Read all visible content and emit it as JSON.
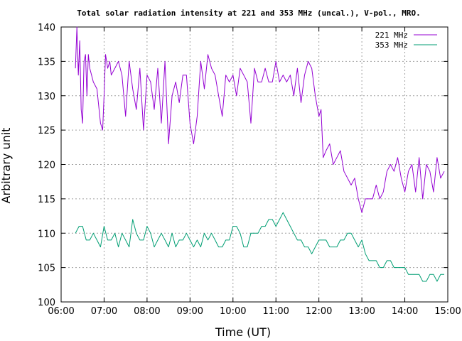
{
  "chart_data": {
    "type": "line",
    "title": "Total solar radiation intensity at 221 and 353 MHz (uncal.), V-pol., MRO.",
    "xlabel": "Time (UT)",
    "ylabel": "Arbitrary unit",
    "xlim": [
      "06:00",
      "15:00"
    ],
    "ylim": [
      100,
      140
    ],
    "x_ticks": [
      "06:00",
      "07:00",
      "08:00",
      "09:00",
      "10:00",
      "11:00",
      "12:00",
      "13:00",
      "14:00",
      "15:00"
    ],
    "y_ticks": [
      100,
      105,
      110,
      115,
      120,
      125,
      130,
      135,
      140
    ],
    "grid": true,
    "legend_position": "top-right",
    "series": [
      {
        "name": "221 MHz",
        "color": "#9400d3",
        "x": [
          "06:20",
          "06:22",
          "06:24",
          "06:26",
          "06:28",
          "06:30",
          "06:32",
          "06:34",
          "06:36",
          "06:38",
          "06:40",
          "06:45",
          "06:50",
          "06:55",
          "06:58",
          "07:00",
          "07:02",
          "07:05",
          "07:08",
          "07:10",
          "07:15",
          "07:20",
          "07:25",
          "07:30",
          "07:35",
          "07:40",
          "07:45",
          "07:50",
          "07:55",
          "08:00",
          "08:05",
          "08:10",
          "08:15",
          "08:20",
          "08:25",
          "08:30",
          "08:35",
          "08:40",
          "08:45",
          "08:50",
          "08:55",
          "09:00",
          "09:05",
          "09:10",
          "09:15",
          "09:20",
          "09:25",
          "09:30",
          "09:35",
          "09:40",
          "09:45",
          "09:50",
          "09:55",
          "10:00",
          "10:05",
          "10:10",
          "10:15",
          "10:20",
          "10:25",
          "10:30",
          "10:35",
          "10:40",
          "10:45",
          "10:50",
          "10:55",
          "11:00",
          "11:05",
          "11:10",
          "11:15",
          "11:20",
          "11:25",
          "11:30",
          "11:35",
          "11:40",
          "11:45",
          "11:50",
          "11:55",
          "12:00",
          "12:03",
          "12:06",
          "12:10",
          "12:15",
          "12:20",
          "12:25",
          "12:30",
          "12:35",
          "12:40",
          "12:45",
          "12:50",
          "12:55",
          "13:00",
          "13:05",
          "13:10",
          "13:15",
          "13:20",
          "13:25",
          "13:30",
          "13:35",
          "13:40",
          "13:45",
          "13:50",
          "13:55",
          "14:00",
          "14:05",
          "14:10",
          "14:15",
          "14:20",
          "14:25",
          "14:30",
          "14:35",
          "14:40",
          "14:45",
          "14:50",
          "14:55"
        ],
        "values": [
          134,
          140,
          133,
          138,
          128,
          126,
          135,
          136,
          130,
          136,
          134,
          132,
          131,
          126,
          125,
          130,
          136,
          134,
          135,
          133,
          134,
          135,
          133,
          127,
          135,
          131,
          128,
          134,
          125,
          133,
          132,
          128,
          134,
          126,
          135,
          123,
          130,
          132,
          129,
          133,
          133,
          126,
          123,
          127,
          135,
          131,
          136,
          134,
          133,
          130,
          127,
          133,
          132,
          133,
          130,
          134,
          133,
          132,
          126,
          134,
          132,
          132,
          134,
          132,
          132,
          135,
          132,
          133,
          132,
          133,
          130,
          134,
          129,
          133,
          135,
          134,
          130,
          127,
          128,
          121,
          122,
          123,
          120,
          121,
          122,
          119,
          118,
          117,
          118,
          115,
          113,
          115,
          115,
          115,
          117,
          115,
          116,
          119,
          120,
          119,
          121,
          118,
          116,
          119,
          120,
          116,
          121,
          115,
          120,
          119,
          116,
          121,
          118,
          119
        ]
      },
      {
        "name": "353 MHz",
        "color": "#009e73",
        "x": [
          "06:20",
          "06:25",
          "06:30",
          "06:35",
          "06:40",
          "06:45",
          "06:50",
          "06:55",
          "07:00",
          "07:05",
          "07:10",
          "07:15",
          "07:20",
          "07:25",
          "07:30",
          "07:35",
          "07:40",
          "07:45",
          "07:50",
          "07:55",
          "08:00",
          "08:05",
          "08:10",
          "08:15",
          "08:20",
          "08:25",
          "08:30",
          "08:35",
          "08:40",
          "08:45",
          "08:50",
          "08:55",
          "09:00",
          "09:05",
          "09:10",
          "09:15",
          "09:20",
          "09:25",
          "09:30",
          "09:35",
          "09:40",
          "09:45",
          "09:50",
          "09:55",
          "10:00",
          "10:05",
          "10:10",
          "10:15",
          "10:20",
          "10:25",
          "10:30",
          "10:35",
          "10:40",
          "10:45",
          "10:50",
          "10:55",
          "11:00",
          "11:05",
          "11:10",
          "11:15",
          "11:20",
          "11:25",
          "11:30",
          "11:35",
          "11:40",
          "11:45",
          "11:50",
          "11:55",
          "12:00",
          "12:05",
          "12:10",
          "12:15",
          "12:20",
          "12:25",
          "12:30",
          "12:35",
          "12:40",
          "12:45",
          "12:50",
          "12:55",
          "13:00",
          "13:05",
          "13:10",
          "13:15",
          "13:20",
          "13:25",
          "13:30",
          "13:35",
          "13:40",
          "13:45",
          "13:50",
          "13:55",
          "14:00",
          "14:05",
          "14:10",
          "14:15",
          "14:20",
          "14:25",
          "14:30",
          "14:35",
          "14:40",
          "14:45",
          "14:50",
          "14:55"
        ],
        "values": [
          110,
          111,
          111,
          109,
          109,
          110,
          109,
          108,
          111,
          109,
          109,
          110,
          108,
          110,
          109,
          108,
          112,
          110,
          109,
          109,
          111,
          110,
          108,
          109,
          110,
          109,
          108,
          110,
          108,
          109,
          109,
          110,
          109,
          108,
          109,
          108,
          110,
          109,
          110,
          109,
          108,
          108,
          109,
          109,
          111,
          111,
          110,
          108,
          108,
          110,
          110,
          110,
          111,
          111,
          112,
          112,
          111,
          112,
          113,
          112,
          111,
          110,
          109,
          109,
          108,
          108,
          107,
          108,
          109,
          109,
          109,
          108,
          108,
          108,
          109,
          109,
          110,
          110,
          109,
          108,
          109,
          107,
          106,
          106,
          106,
          105,
          105,
          106,
          106,
          105,
          105,
          105,
          105,
          104,
          104,
          104,
          104,
          103,
          103,
          104,
          104,
          103,
          104,
          104
        ]
      }
    ]
  }
}
